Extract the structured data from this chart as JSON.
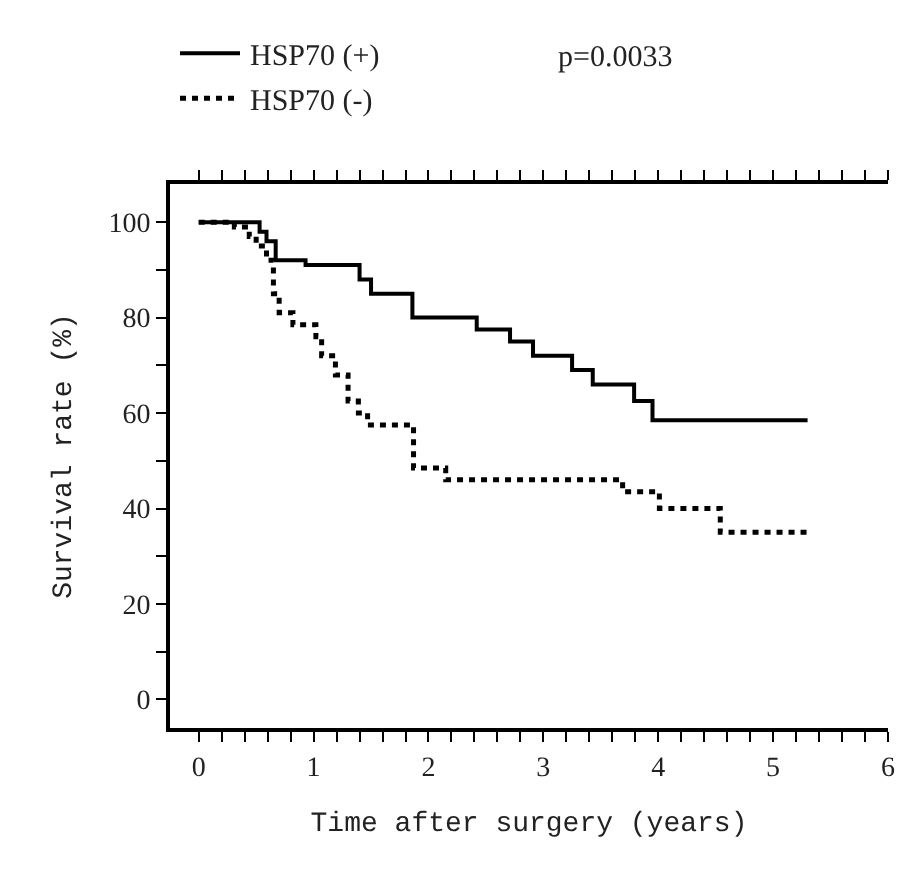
{
  "chart_data": {
    "type": "step",
    "xlabel": "Time after surgery (years)",
    "ylabel": "Survival rate (%)",
    "annotations": [
      "p=0.0033"
    ],
    "xlim": [
      -0.25,
      6
    ],
    "ylim": [
      -6,
      108
    ],
    "xticks": [
      0,
      {
        "value": 0.2,
        "label": null
      },
      {
        "value": 0.4,
        "label": null
      },
      {
        "value": 0.6,
        "label": null
      },
      {
        "value": 0.8,
        "label": null
      },
      1,
      {
        "value": 1.2,
        "label": null
      },
      {
        "value": 1.4,
        "label": null
      },
      {
        "value": 1.6,
        "label": null
      },
      {
        "value": 1.8,
        "label": null
      },
      2,
      {
        "value": 2.2,
        "label": null
      },
      {
        "value": 2.4,
        "label": null
      },
      {
        "value": 2.6,
        "label": null
      },
      {
        "value": 2.8,
        "label": null
      },
      3,
      {
        "value": 3.2,
        "label": null
      },
      {
        "value": 3.4,
        "label": null
      },
      {
        "value": 3.6,
        "label": null
      },
      {
        "value": 3.8,
        "label": null
      },
      4,
      {
        "value": 4.2,
        "label": null
      },
      {
        "value": 4.4,
        "label": null
      },
      {
        "value": 4.6,
        "label": null
      },
      {
        "value": 4.8,
        "label": null
      },
      5,
      {
        "value": 5.2,
        "label": null
      },
      {
        "value": 5.4,
        "label": null
      },
      {
        "value": 5.6,
        "label": null
      },
      {
        "value": 5.8,
        "label": null
      },
      6
    ],
    "yticks": [
      0,
      {
        "value": 10,
        "label": null
      },
      20,
      {
        "value": 30,
        "label": null
      },
      40,
      {
        "value": 50,
        "label": null
      },
      60,
      {
        "value": 70,
        "label": null
      },
      80,
      {
        "value": 90,
        "label": null
      },
      100
    ],
    "legend": "top left",
    "marker": "none",
    "series": [
      {
        "name": "HSP70 (+)",
        "color": "#000000",
        "line_style": "solid",
        "x": [
          0,
          0.53,
          0.59,
          0.67,
          0.93,
          1.4,
          1.5,
          1.86,
          2.42,
          2.71,
          2.91,
          3.25,
          3.43,
          3.79,
          3.95,
          5.3
        ],
        "values": [
          100,
          98,
          96,
          92,
          91,
          88,
          85,
          80,
          77.5,
          75,
          72,
          69,
          66,
          62.5,
          58.5,
          58.5
        ]
      },
      {
        "name": "HSP70 (-)",
        "color": "#000000",
        "line_style": "dotted",
        "x": [
          0,
          0.31,
          0.44,
          0.5,
          0.59,
          0.65,
          0.7,
          0.82,
          1.02,
          1.07,
          1.19,
          1.3,
          1.39,
          1.47,
          1.87,
          2.15,
          3.69,
          4.01,
          4.54,
          5.3
        ],
        "values": [
          100,
          99,
          97,
          95,
          92,
          85,
          81,
          78.5,
          76,
          72,
          68,
          62.5,
          60,
          57.5,
          48.5,
          46,
          43.5,
          40,
          35,
          35
        ]
      }
    ]
  }
}
